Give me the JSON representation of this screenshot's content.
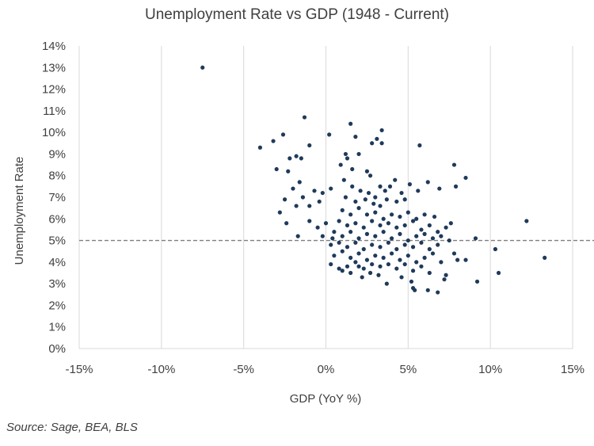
{
  "chart_data": {
    "type": "scatter",
    "title": "Unemployment Rate vs GDP (1948 - Current)",
    "xlabel": "GDP (YoY %)",
    "ylabel": "Unemployment Rate",
    "xlim": [
      -15,
      15
    ],
    "ylim": [
      0,
      14
    ],
    "xticks": [
      -15,
      -10,
      -5,
      0,
      5,
      10,
      15
    ],
    "yticks": [
      0,
      1,
      2,
      3,
      4,
      5,
      6,
      7,
      8,
      9,
      10,
      11,
      12,
      13,
      14
    ],
    "x_tick_labels": [
      "-15%",
      "-10%",
      "-5%",
      "0%",
      "5%",
      "10%",
      "15%"
    ],
    "y_tick_labels": [
      "0%",
      "1%",
      "2%",
      "3%",
      "4%",
      "5%",
      "6%",
      "7%",
      "8%",
      "9%",
      "10%",
      "11%",
      "12%",
      "13%",
      "14%"
    ],
    "grid": "vertical",
    "reference_line": {
      "y": 5,
      "style": "dashed"
    },
    "point_color": "#1f3a5a",
    "points": [
      [
        -7.5,
        13.0
      ],
      [
        -1.3,
        10.7
      ],
      [
        -4.0,
        9.3
      ],
      [
        -3.2,
        9.6
      ],
      [
        -2.6,
        9.9
      ],
      [
        -2.2,
        8.8
      ],
      [
        -1.8,
        8.9
      ],
      [
        -1.0,
        9.4
      ],
      [
        -1.5,
        8.8
      ],
      [
        -3.0,
        8.3
      ],
      [
        -2.3,
        8.2
      ],
      [
        -1.6,
        7.7
      ],
      [
        -2.0,
        7.4
      ],
      [
        -1.4,
        7.0
      ],
      [
        -0.7,
        7.3
      ],
      [
        -0.2,
        7.2
      ],
      [
        0.3,
        7.4
      ],
      [
        -2.5,
        6.9
      ],
      [
        -1.8,
        6.6
      ],
      [
        -1.0,
        6.6
      ],
      [
        -0.4,
        6.8
      ],
      [
        -2.8,
        6.3
      ],
      [
        -2.4,
        5.8
      ],
      [
        -1.0,
        5.9
      ],
      [
        -0.5,
        5.6
      ],
      [
        0.0,
        5.8
      ],
      [
        -1.7,
        5.2
      ],
      [
        -0.2,
        5.2
      ],
      [
        0.4,
        5.1
      ],
      [
        0.2,
        9.9
      ],
      [
        0.9,
        8.5
      ],
      [
        1.2,
        9.0
      ],
      [
        1.5,
        10.4
      ],
      [
        1.8,
        9.8
      ],
      [
        2.0,
        9.0
      ],
      [
        1.6,
        8.3
      ],
      [
        2.5,
        8.2
      ],
      [
        2.8,
        9.5
      ],
      [
        3.1,
        9.7
      ],
      [
        3.4,
        9.5
      ],
      [
        3.4,
        10.1
      ],
      [
        5.7,
        9.4
      ],
      [
        1.3,
        8.8
      ],
      [
        2.7,
        8.0
      ],
      [
        1.1,
        7.8
      ],
      [
        1.6,
        7.5
      ],
      [
        2.1,
        7.3
      ],
      [
        2.6,
        7.2
      ],
      [
        3.0,
        7.0
      ],
      [
        3.3,
        7.5
      ],
      [
        3.6,
        7.3
      ],
      [
        3.9,
        7.5
      ],
      [
        4.2,
        7.8
      ],
      [
        4.6,
        7.2
      ],
      [
        5.1,
        7.6
      ],
      [
        5.6,
        7.3
      ],
      [
        6.2,
        7.7
      ],
      [
        6.9,
        7.4
      ],
      [
        7.9,
        7.5
      ],
      [
        8.5,
        7.9
      ],
      [
        7.8,
        8.5
      ],
      [
        1.2,
        7.0
      ],
      [
        1.8,
        6.8
      ],
      [
        2.4,
        6.9
      ],
      [
        2.9,
        6.7
      ],
      [
        3.3,
        6.6
      ],
      [
        3.7,
        6.9
      ],
      [
        4.3,
        6.8
      ],
      [
        4.8,
        6.9
      ],
      [
        1.0,
        6.4
      ],
      [
        1.5,
        6.2
      ],
      [
        2.0,
        6.5
      ],
      [
        2.5,
        6.2
      ],
      [
        3.0,
        6.3
      ],
      [
        3.5,
        6.0
      ],
      [
        4.0,
        6.2
      ],
      [
        4.5,
        6.1
      ],
      [
        5.0,
        6.3
      ],
      [
        5.5,
        6.0
      ],
      [
        6.0,
        6.2
      ],
      [
        6.6,
        6.1
      ],
      [
        0.8,
        5.9
      ],
      [
        1.3,
        5.7
      ],
      [
        1.8,
        5.8
      ],
      [
        2.3,
        5.6
      ],
      [
        2.8,
        5.9
      ],
      [
        3.3,
        5.7
      ],
      [
        3.8,
        5.8
      ],
      [
        4.3,
        5.6
      ],
      [
        4.8,
        5.7
      ],
      [
        5.3,
        5.9
      ],
      [
        5.8,
        5.5
      ],
      [
        6.3,
        5.7
      ],
      [
        6.8,
        5.4
      ],
      [
        7.3,
        5.6
      ],
      [
        7.6,
        5.8
      ],
      [
        0.5,
        5.4
      ],
      [
        1.0,
        5.2
      ],
      [
        1.5,
        5.4
      ],
      [
        2.0,
        5.1
      ],
      [
        2.5,
        5.3
      ],
      [
        3.0,
        5.2
      ],
      [
        3.5,
        5.4
      ],
      [
        4.0,
        5.1
      ],
      [
        4.5,
        5.3
      ],
      [
        5.0,
        5.0
      ],
      [
        5.5,
        5.2
      ],
      [
        6.0,
        5.3
      ],
      [
        6.5,
        5.1
      ],
      [
        7.0,
        5.2
      ],
      [
        7.5,
        5.0
      ],
      [
        0.3,
        4.8
      ],
      [
        0.8,
        4.9
      ],
      [
        1.3,
        4.7
      ],
      [
        1.8,
        4.9
      ],
      [
        2.3,
        4.6
      ],
      [
        2.8,
        4.8
      ],
      [
        3.3,
        4.7
      ],
      [
        3.8,
        4.9
      ],
      [
        4.3,
        4.6
      ],
      [
        4.8,
        4.8
      ],
      [
        5.3,
        4.7
      ],
      [
        5.8,
        4.9
      ],
      [
        6.3,
        4.6
      ],
      [
        6.8,
        4.8
      ],
      [
        7.8,
        4.4
      ],
      [
        9.1,
        5.1
      ],
      [
        8.5,
        4.1
      ],
      [
        10.3,
        4.6
      ],
      [
        12.2,
        5.9
      ],
      [
        13.3,
        4.2
      ],
      [
        10.5,
        3.5
      ],
      [
        9.2,
        3.1
      ],
      [
        0.5,
        4.3
      ],
      [
        1.0,
        4.5
      ],
      [
        1.5,
        4.2
      ],
      [
        2.0,
        4.4
      ],
      [
        2.5,
        4.1
      ],
      [
        3.0,
        4.3
      ],
      [
        3.5,
        4.2
      ],
      [
        4.0,
        4.4
      ],
      [
        4.5,
        4.1
      ],
      [
        5.0,
        4.3
      ],
      [
        5.5,
        4.0
      ],
      [
        6.0,
        4.2
      ],
      [
        6.5,
        4.4
      ],
      [
        7.0,
        4.0
      ],
      [
        8.0,
        4.1
      ],
      [
        0.3,
        3.9
      ],
      [
        0.8,
        3.7
      ],
      [
        1.3,
        3.8
      ],
      [
        1.8,
        4.0
      ],
      [
        2.3,
        3.7
      ],
      [
        2.8,
        3.9
      ],
      [
        3.3,
        3.8
      ],
      [
        3.8,
        3.9
      ],
      [
        4.3,
        3.7
      ],
      [
        4.8,
        3.9
      ],
      [
        5.3,
        3.6
      ],
      [
        5.8,
        3.8
      ],
      [
        6.3,
        3.5
      ],
      [
        7.3,
        3.4
      ],
      [
        1.5,
        3.5
      ],
      [
        2.2,
        3.3
      ],
      [
        2.7,
        3.5
      ],
      [
        3.2,
        3.4
      ],
      [
        3.7,
        3.0
      ],
      [
        4.6,
        3.3
      ],
      [
        5.2,
        3.1
      ],
      [
        5.3,
        2.8
      ],
      [
        5.4,
        2.7
      ],
      [
        6.2,
        2.7
      ],
      [
        6.8,
        2.6
      ],
      [
        7.2,
        3.2
      ],
      [
        1.0,
        3.6
      ],
      [
        2.0,
        3.8
      ]
    ]
  },
  "source_note": "Source: Sage, BEA, BLS"
}
